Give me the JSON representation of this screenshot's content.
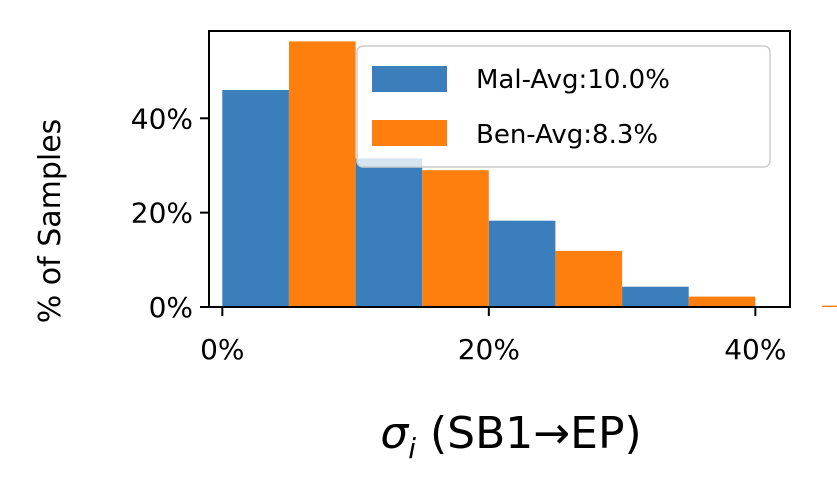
{
  "chart_data": {
    "type": "bar",
    "xlabel_symbol": "σ",
    "xlabel_subscript": "i",
    "xlabel_rest": " (SB1→EP)",
    "ylabel": "% of Samples",
    "x_bin_starts": [
      0,
      10,
      20,
      30,
      40
    ],
    "bin_width": 10,
    "xlim": [
      -1,
      42.6
    ],
    "ylim": [
      0,
      58.5
    ],
    "xticks": [
      0,
      20,
      40
    ],
    "xtick_labels": [
      "0%",
      "20%",
      "40%"
    ],
    "yticks": [
      0,
      20,
      40
    ],
    "ytick_labels": [
      "0%",
      "20%",
      "40%"
    ],
    "series": [
      {
        "name": "Mal-Avg:10.0%",
        "color": "#3a7ebb",
        "values": [
          46,
          31.5,
          18.3,
          4.3,
          0
        ]
      },
      {
        "name": "Ben-Avg:8.3%",
        "color": "#ff7f0e",
        "values": [
          56.3,
          29,
          11.9,
          2.2,
          0.3
        ]
      }
    ],
    "legend_position": "top-right",
    "grid": false
  }
}
